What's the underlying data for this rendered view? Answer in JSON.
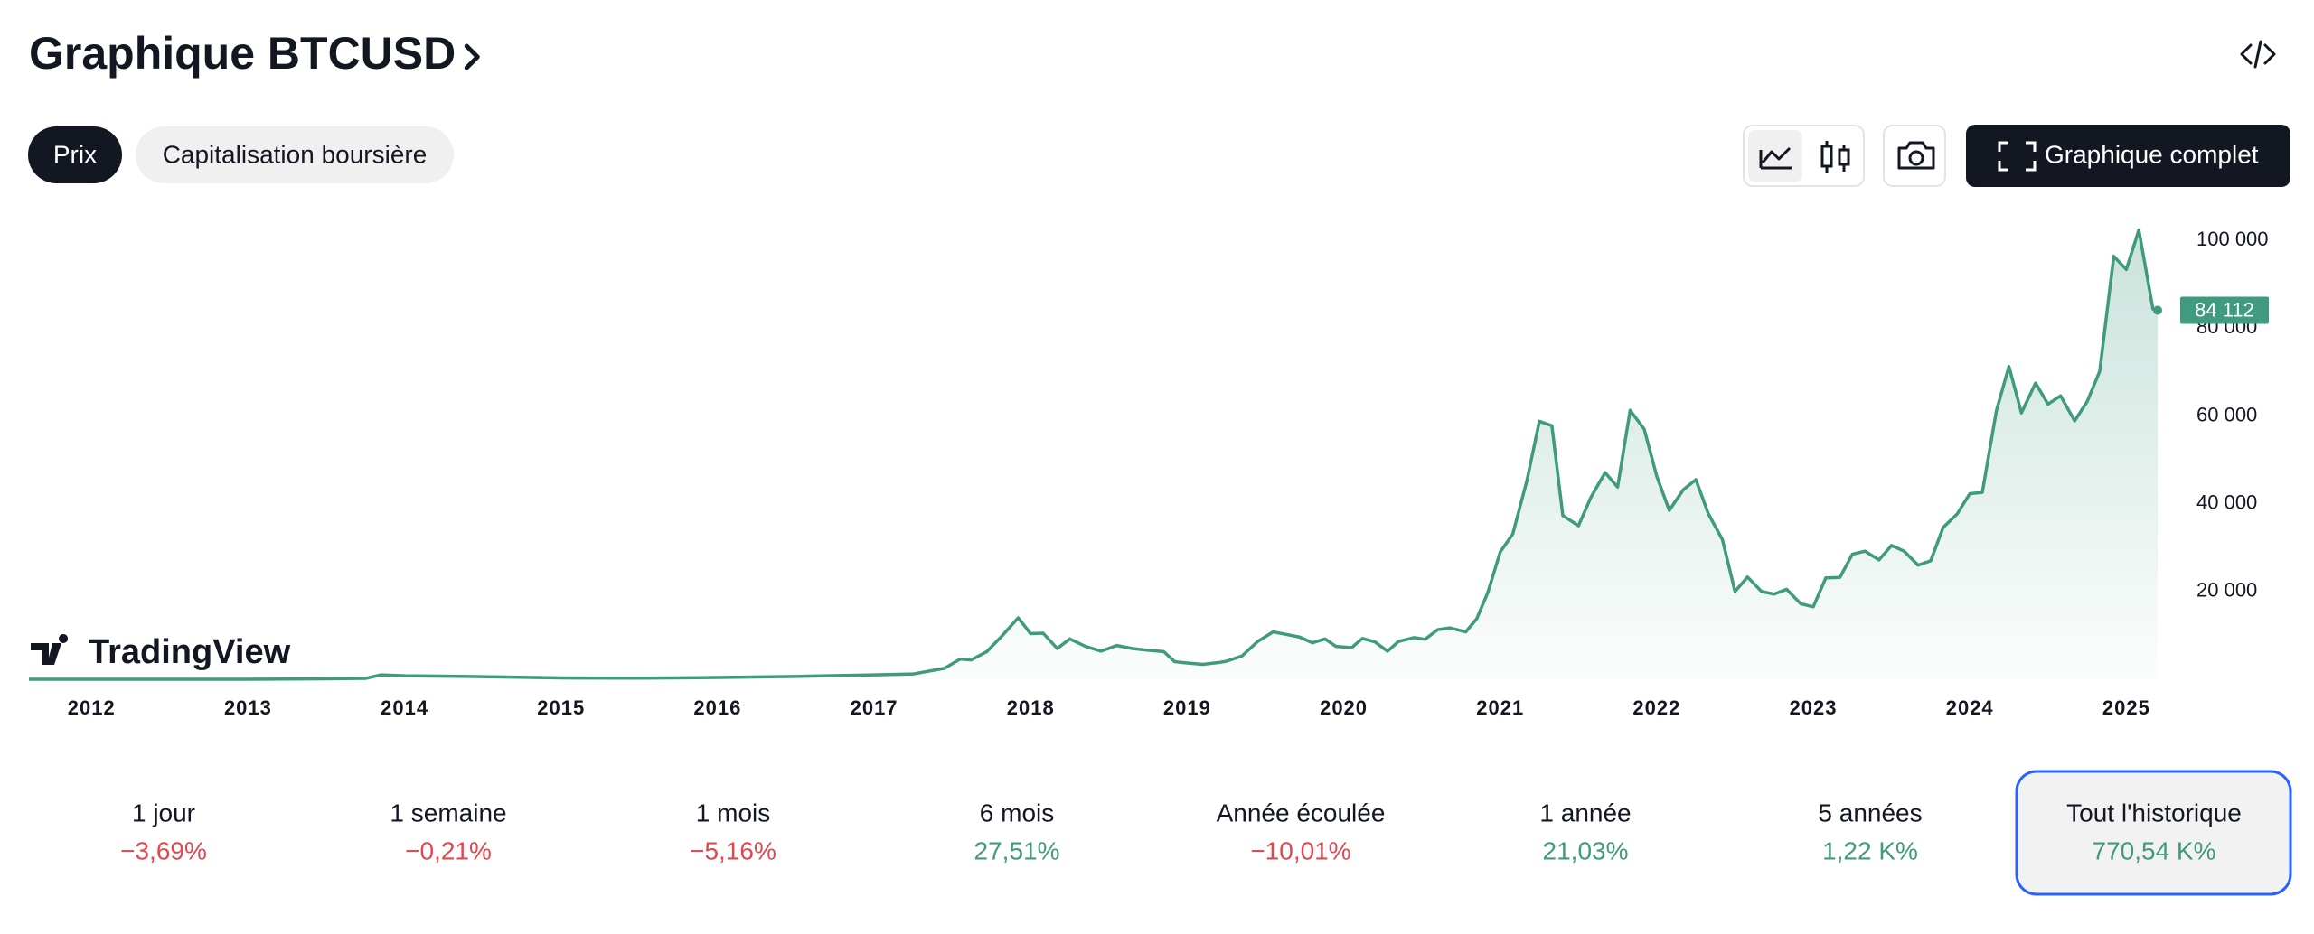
{
  "header": {
    "title": "Graphique BTCUSD"
  },
  "tabs": {
    "items": [
      "Prix",
      "Capitalisation boursière"
    ],
    "selected": 0
  },
  "toolbar": {
    "full_chart": "Graphique complet"
  },
  "watermark": "TradingView",
  "chart_data": {
    "type": "area",
    "color": "#3f9a7f",
    "xlim": [
      2011.6,
      2025.2
    ],
    "xticks": [
      2012,
      2013,
      2014,
      2015,
      2016,
      2017,
      2018,
      2019,
      2020,
      2021,
      2022,
      2023,
      2024,
      2025
    ],
    "ylim": [
      0,
      105000
    ],
    "yticks": [
      {
        "value": 20000,
        "label": "20 000"
      },
      {
        "value": 40000,
        "label": "40 000"
      },
      {
        "value": 60000,
        "label": "60 000"
      },
      {
        "value": 80000,
        "label": "80 000"
      },
      {
        "value": 100000,
        "label": "100 000"
      }
    ],
    "grid": false,
    "x": [
      2011.6,
      2012.0,
      2012.5,
      2013.0,
      2013.5,
      2013.75,
      2013.85,
      2014.0,
      2014.5,
      2015.0,
      2015.5,
      2016.0,
      2016.5,
      2017.0,
      2017.25,
      2017.45,
      2017.55,
      2017.62,
      2017.72,
      2017.82,
      2017.92,
      2018.0,
      2018.08,
      2018.17,
      2018.25,
      2018.35,
      2018.45,
      2018.55,
      2018.65,
      2018.75,
      2018.85,
      2018.92,
      2019.0,
      2019.1,
      2019.2,
      2019.25,
      2019.35,
      2019.45,
      2019.55,
      2019.65,
      2019.72,
      2019.8,
      2019.88,
      2019.95,
      2020.05,
      2020.12,
      2020.2,
      2020.28,
      2020.35,
      2020.45,
      2020.52,
      2020.6,
      2020.68,
      2020.78,
      2020.85,
      2020.92,
      2021.0,
      2021.08,
      2021.17,
      2021.25,
      2021.33,
      2021.4,
      2021.5,
      2021.58,
      2021.67,
      2021.75,
      2021.83,
      2021.92,
      2022.0,
      2022.08,
      2022.17,
      2022.25,
      2022.33,
      2022.42,
      2022.5,
      2022.58,
      2022.67,
      2022.75,
      2022.83,
      2022.92,
      2023.0,
      2023.08,
      2023.17,
      2023.25,
      2023.33,
      2023.42,
      2023.5,
      2023.58,
      2023.67,
      2023.75,
      2023.83,
      2023.92,
      2024.0,
      2024.08,
      2024.17,
      2024.25,
      2024.33,
      2024.42,
      2024.5,
      2024.58,
      2024.67,
      2024.75,
      2024.83,
      2024.92,
      2025.0,
      2025.08,
      2025.17,
      2025.2
    ],
    "values": [
      5,
      5,
      7,
      13,
      100,
      200,
      1000,
      800,
      600,
      300,
      250,
      400,
      650,
      1000,
      1200,
      2500,
      4600,
      4400,
      6300,
      10000,
      14000,
      10400,
      10500,
      7000,
      9200,
      7500,
      6400,
      7700,
      7000,
      6600,
      6300,
      4000,
      3700,
      3400,
      3800,
      4100,
      5300,
      8600,
      10800,
      10100,
      9600,
      8300,
      9200,
      7500,
      7200,
      9300,
      8500,
      6400,
      8600,
      9500,
      9100,
      11300,
      11700,
      10800,
      13800,
      19700,
      29000,
      33100,
      45200,
      58800,
      57800,
      37300,
      35000,
      41500,
      47100,
      43800,
      61300,
      57000,
      46300,
      38500,
      43200,
      45500,
      37700,
      31800,
      20000,
      23300,
      20000,
      19400,
      20500,
      17200,
      16500,
      23100,
      23200,
      28500,
      29200,
      27200,
      30500,
      29200,
      26000,
      27000,
      34600,
      37700,
      42300,
      42600,
      61200,
      71300,
      60700,
      67500,
      62700,
      64600,
      58900,
      63300,
      70200,
      96400,
      93400,
      102400,
      84400,
      84112
    ],
    "value_labels": [
      null,
      null,
      null,
      null,
      null,
      null,
      null,
      null,
      null,
      null,
      null,
      null,
      null,
      null,
      null,
      null,
      null,
      null,
      null,
      null,
      null,
      null,
      null,
      null,
      null,
      null,
      null,
      null,
      null,
      null,
      null,
      null,
      null,
      null,
      null,
      null,
      null,
      null,
      null,
      null,
      null,
      null,
      null,
      null,
      null,
      null,
      null,
      null,
      null,
      null,
      null,
      null,
      null,
      null,
      null,
      null,
      null,
      null,
      null,
      null,
      null,
      null,
      null,
      null,
      null,
      null,
      null,
      null,
      null,
      null,
      null,
      null,
      null,
      null,
      null,
      null,
      null,
      null,
      null,
      null,
      null,
      null,
      null,
      null,
      null,
      null,
      null,
      null,
      null,
      null,
      null,
      null,
      null,
      null,
      null,
      null,
      null,
      null,
      null,
      null,
      null,
      null,
      null,
      null,
      null,
      null,
      null,
      "84 112"
    ]
  },
  "periods": {
    "selected": 7,
    "items": [
      {
        "label": "1 jour",
        "change": "−3,69%",
        "color": "#e0474f"
      },
      {
        "label": "1 semaine",
        "change": "−0,21%",
        "color": "#e0474f"
      },
      {
        "label": "1 mois",
        "change": "−5,16%",
        "color": "#e0474f"
      },
      {
        "label": "6 mois",
        "change": "27,51%",
        "color": "#3f9a7f"
      },
      {
        "label": "Année écoulée",
        "change": "−10,01%",
        "color": "#e0474f"
      },
      {
        "label": "1 année",
        "change": "21,03%",
        "color": "#3f9a7f"
      },
      {
        "label": "5 années",
        "change": "1,22 K%",
        "color": "#3f9a7f"
      },
      {
        "label": "Tout l'historique",
        "change": "770,54 K%",
        "color": "#3f9a7f"
      }
    ]
  }
}
